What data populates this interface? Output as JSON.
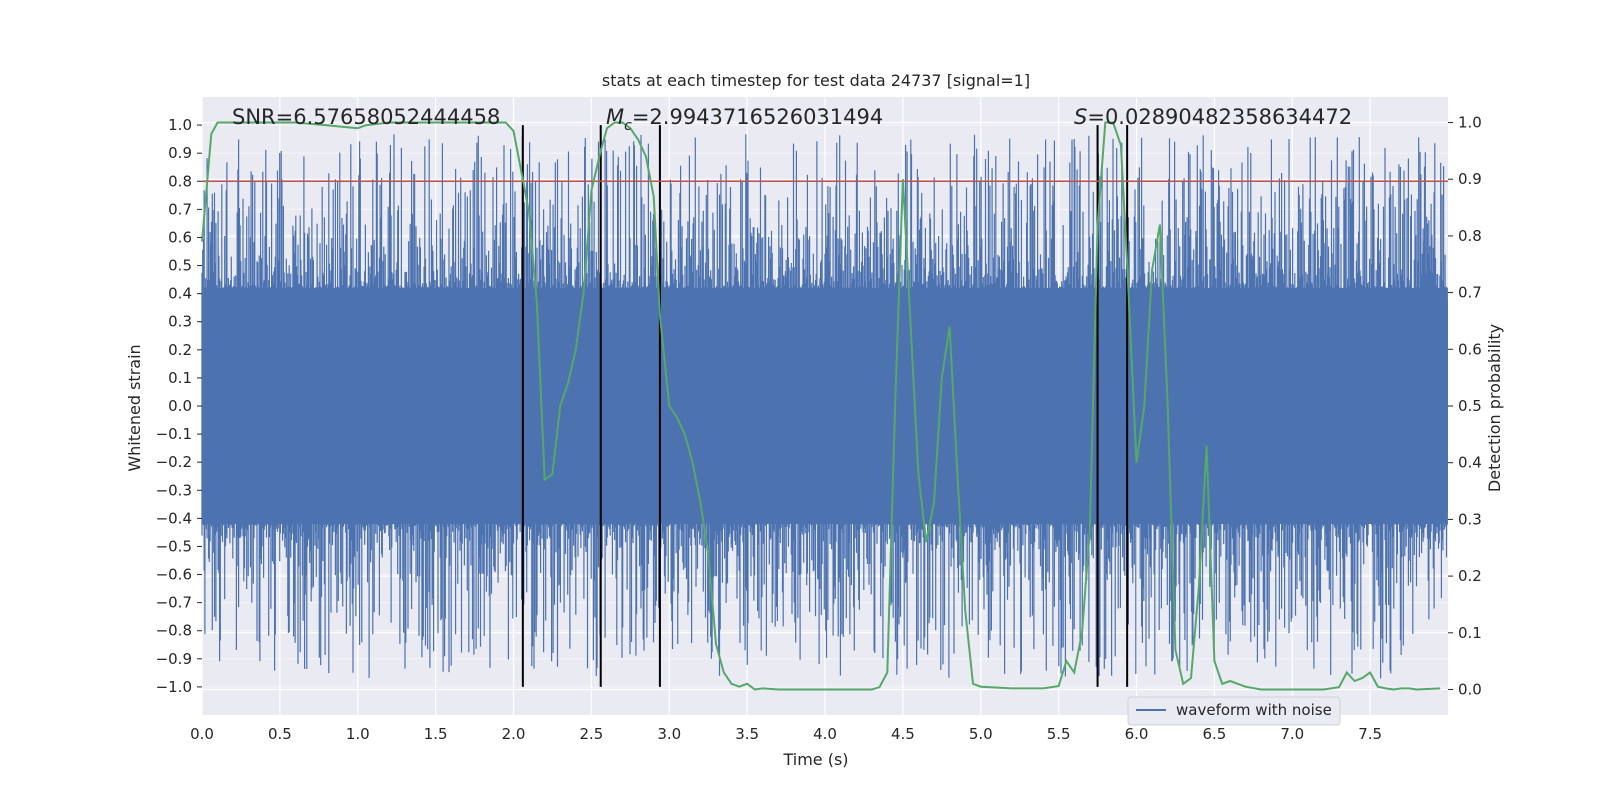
{
  "chart_data": {
    "type": "line",
    "title": "stats at each timestep for test data 24737 [signal=1]",
    "xlabel": "Time (s)",
    "ylabel": "Whitened strain",
    "y2label": "Detection probability",
    "xlim": [
      0.0,
      8.0
    ],
    "ylim": [
      -1.1,
      1.1
    ],
    "y2lim": [
      -0.045,
      1.045
    ],
    "xticks": [
      0.0,
      0.5,
      1.0,
      1.5,
      2.0,
      2.5,
      3.0,
      3.5,
      4.0,
      4.5,
      5.0,
      5.5,
      6.0,
      6.5,
      7.0,
      7.5
    ],
    "xtick_labels": [
      "0.0",
      "0.5",
      "1.0",
      "1.5",
      "2.0",
      "2.5",
      "3.0",
      "3.5",
      "4.0",
      "4.5",
      "5.0",
      "5.5",
      "6.0",
      "6.5",
      "7.0",
      "7.5"
    ],
    "yticks": [
      1.0,
      0.9,
      0.8,
      0.7,
      0.6,
      0.5,
      0.4,
      0.3,
      0.2,
      0.1,
      0.0,
      -0.1,
      -0.2,
      -0.3,
      -0.4,
      -0.5,
      -0.6,
      -0.7,
      -0.8,
      -0.9,
      -1.0
    ],
    "ytick_labels": [
      "1.0",
      "0.9",
      "0.8",
      "0.7",
      "0.6",
      "0.5",
      "0.4",
      "0.3",
      "0.2",
      "0.1",
      "0.0",
      "−0.1",
      "−0.2",
      "−0.3",
      "−0.4",
      "−0.5",
      "−0.6",
      "−0.7",
      "−0.8",
      "−0.9",
      "−1.0"
    ],
    "y2ticks": [
      1.0,
      0.9,
      0.8,
      0.7,
      0.6,
      0.5,
      0.4,
      0.3,
      0.2,
      0.1,
      0.0
    ],
    "y2tick_labels": [
      "1.0",
      "0.9",
      "0.8",
      "0.7",
      "0.6",
      "0.5",
      "0.4",
      "0.3",
      "0.2",
      "0.1",
      "0.0"
    ],
    "threshold": 0.8,
    "vertical_markers": [
      2.06,
      2.56,
      2.94,
      5.75,
      5.94
    ],
    "annotations": {
      "snr": "SNR=6.57658052444458",
      "mc_symbol": "M",
      "mc_subscript": "c",
      "mc_value": "=2.9943716526031494",
      "s_symbol": "S",
      "s_value": "=0.02890482358634472"
    },
    "legend": [
      "waveform with noise"
    ],
    "legend_position": "lower-right",
    "waveform_summary": {
      "name": "waveform with noise",
      "duration_s": 8.0,
      "core_band": [
        -0.38,
        0.38
      ],
      "max_abs": 0.99
    },
    "series": [
      {
        "name": "Detection probability",
        "axis": "right",
        "x": [
          0.0,
          0.06,
          0.1,
          0.2,
          0.4,
          0.6,
          0.8,
          1.0,
          1.05,
          1.2,
          1.4,
          1.6,
          1.8,
          1.95,
          2.0,
          2.06,
          2.1,
          2.15,
          2.2,
          2.25,
          2.3,
          2.35,
          2.4,
          2.45,
          2.5,
          2.56,
          2.6,
          2.65,
          2.7,
          2.75,
          2.8,
          2.85,
          2.9,
          2.94,
          3.0,
          3.05,
          3.1,
          3.15,
          3.2,
          3.25,
          3.3,
          3.35,
          3.4,
          3.45,
          3.5,
          3.55,
          3.6,
          3.7,
          3.8,
          4.0,
          4.2,
          4.3,
          4.35,
          4.4,
          4.45,
          4.5,
          4.55,
          4.6,
          4.65,
          4.7,
          4.75,
          4.8,
          4.85,
          4.9,
          4.95,
          5.0,
          5.2,
          5.4,
          5.5,
          5.55,
          5.6,
          5.65,
          5.7,
          5.75,
          5.8,
          5.85,
          5.9,
          5.94,
          6.0,
          6.05,
          6.1,
          6.15,
          6.2,
          6.25,
          6.3,
          6.35,
          6.4,
          6.45,
          6.5,
          6.55,
          6.6,
          6.65,
          6.7,
          6.8,
          7.0,
          7.2,
          7.3,
          7.35,
          7.4,
          7.45,
          7.5,
          7.55,
          7.6,
          7.65,
          7.7,
          7.75,
          7.8,
          7.95
        ],
        "values": [
          0.79,
          0.98,
          1.0,
          1.0,
          1.0,
          1.0,
          0.995,
          0.99,
          0.995,
          1.0,
          1.0,
          1.0,
          1.0,
          1.0,
          0.985,
          0.9,
          0.84,
          0.68,
          0.37,
          0.38,
          0.5,
          0.54,
          0.6,
          0.7,
          0.88,
          0.95,
          0.99,
          1.0,
          1.0,
          0.99,
          0.97,
          0.94,
          0.87,
          0.66,
          0.5,
          0.48,
          0.45,
          0.4,
          0.33,
          0.24,
          0.08,
          0.03,
          0.01,
          0.005,
          0.01,
          0.0,
          0.002,
          0.0,
          0.0,
          0.0,
          0.0,
          0.0,
          0.004,
          0.03,
          0.5,
          0.9,
          0.64,
          0.38,
          0.26,
          0.33,
          0.55,
          0.64,
          0.38,
          0.14,
          0.01,
          0.005,
          0.002,
          0.002,
          0.006,
          0.05,
          0.03,
          0.1,
          0.28,
          0.82,
          1.0,
          1.0,
          0.96,
          0.75,
          0.4,
          0.5,
          0.74,
          0.82,
          0.5,
          0.07,
          0.01,
          0.02,
          0.18,
          0.43,
          0.05,
          0.01,
          0.015,
          0.01,
          0.005,
          0.0,
          0.0,
          0.0,
          0.004,
          0.03,
          0.015,
          0.02,
          0.03,
          0.005,
          0.002,
          0.0,
          0.002,
          0.002,
          0.0,
          0.002
        ]
      }
    ]
  }
}
